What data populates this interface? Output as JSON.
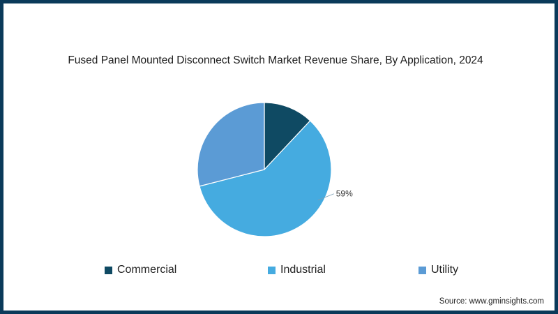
{
  "chart_data": {
    "type": "pie",
    "title": "Fused Panel Mounted Disconnect Switch Market Revenue Share, By Application, 2024",
    "slices": [
      {
        "name": "Commercial",
        "value": 12,
        "color": "#0f4a63",
        "label": ""
      },
      {
        "name": "Industrial",
        "value": 59,
        "color": "#45abe0",
        "label": "59%"
      },
      {
        "name": "Utility",
        "value": 29,
        "color": "#5b9bd5",
        "label": ""
      }
    ],
    "start_angle_deg": 0,
    "direction": "clockwise",
    "legend_position": "bottom"
  },
  "source_text": "Source: www.gminsights.com"
}
